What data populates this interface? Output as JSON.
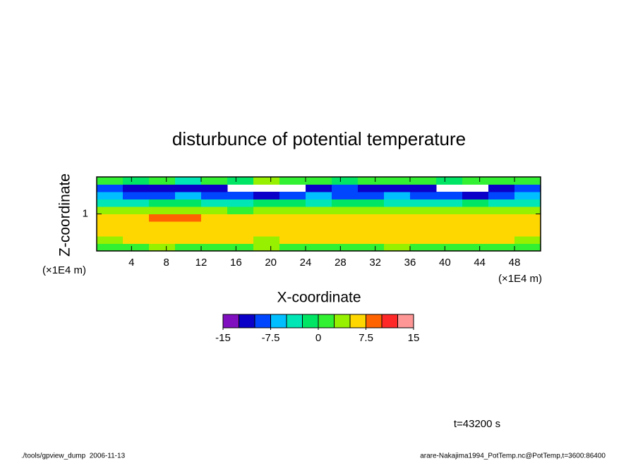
{
  "chart_data": {
    "type": "contour",
    "title": "disturbunce of potential temperature",
    "x_label": "X-coordinate",
    "y_label": "Z-coordinate",
    "x_unit": "(×1E4 m)",
    "y_unit": "(×1E4 m)",
    "xlim": [
      0,
      51
    ],
    "ylim": [
      0,
      2
    ],
    "xticks": [
      4,
      8,
      12,
      16,
      20,
      24,
      28,
      32,
      36,
      40,
      44,
      48
    ],
    "yticks": [
      1
    ],
    "x": [
      1.5,
      4.5,
      7.5,
      10.5,
      13.5,
      16.5,
      19.5,
      22.5,
      25.5,
      28.5,
      31.5,
      34.5,
      37.5,
      40.5,
      43.5,
      46.5,
      49.5
    ],
    "y": [
      0.1,
      0.3,
      0.5,
      0.7,
      0.9,
      1.1,
      1.3,
      1.5,
      1.7,
      1.9
    ],
    "values": [
      [
        1,
        1,
        3.5,
        1,
        1,
        1,
        3.5,
        1,
        1,
        1,
        1,
        3.5,
        1,
        1,
        1,
        1,
        1
      ],
      [
        3.5,
        6,
        6,
        6,
        6,
        6,
        3.5,
        6,
        6,
        6,
        6,
        6,
        6,
        6,
        6,
        6,
        3.5
      ],
      [
        6,
        6,
        6,
        6,
        6,
        6,
        6,
        6,
        6,
        6,
        6,
        6,
        6,
        6,
        6,
        6,
        6
      ],
      [
        6,
        6,
        6,
        6,
        6,
        6,
        6,
        6,
        6,
        6,
        6,
        6,
        6,
        6,
        6,
        6,
        6
      ],
      [
        6,
        6,
        8.5,
        8.5,
        6,
        6,
        6,
        6,
        6,
        6,
        6,
        6,
        6,
        6,
        6,
        6,
        6
      ],
      [
        3.5,
        3.5,
        3.5,
        3.5,
        3.5,
        1,
        3.5,
        3.5,
        3.5,
        3.5,
        3.5,
        3.5,
        3.5,
        3.5,
        3.5,
        3.5,
        3.5
      ],
      [
        -4,
        -4,
        -1,
        -1,
        -4,
        -4,
        -1,
        -1,
        -4,
        -1,
        -1,
        -4,
        -4,
        -4,
        -1,
        -4,
        -4
      ],
      [
        -7,
        -9,
        -9,
        -7,
        -9,
        -9,
        -12,
        -9,
        -7,
        -9,
        -9,
        -7,
        -9,
        -9,
        -12,
        -9,
        -7
      ],
      [
        -9,
        -11,
        -11,
        -12,
        -11,
        null,
        null,
        null,
        -11,
        -9,
        -11,
        -11,
        -11,
        null,
        null,
        -11,
        -9
      ],
      [
        1,
        -1,
        1,
        -4,
        1,
        -1,
        3.5,
        1,
        1,
        -1,
        1,
        1,
        1,
        -1,
        1,
        1,
        1
      ]
    ],
    "levels": [
      -15,
      -12.5,
      -10,
      -7.5,
      -5,
      -2.5,
      0,
      2.5,
      5,
      7.5,
      10,
      12.5,
      15
    ],
    "colors": [
      "#7f0fbf",
      "#0a00c8",
      "#0046ff",
      "#00beff",
      "#00e6b4",
      "#00e664",
      "#32f032",
      "#96f000",
      "#ffd700",
      "#ff6400",
      "#ff2828",
      "#ff9696"
    ],
    "colorbar_ticks": [
      -15,
      -7.5,
      0,
      7.5,
      15
    ],
    "annotation": "t=43200 s",
    "footer_left": "./tools/gpview_dump  2006-11-13",
    "footer_right": "arare-Nakajima1994_PotTemp.nc@PotTemp,t=3600:86400"
  }
}
